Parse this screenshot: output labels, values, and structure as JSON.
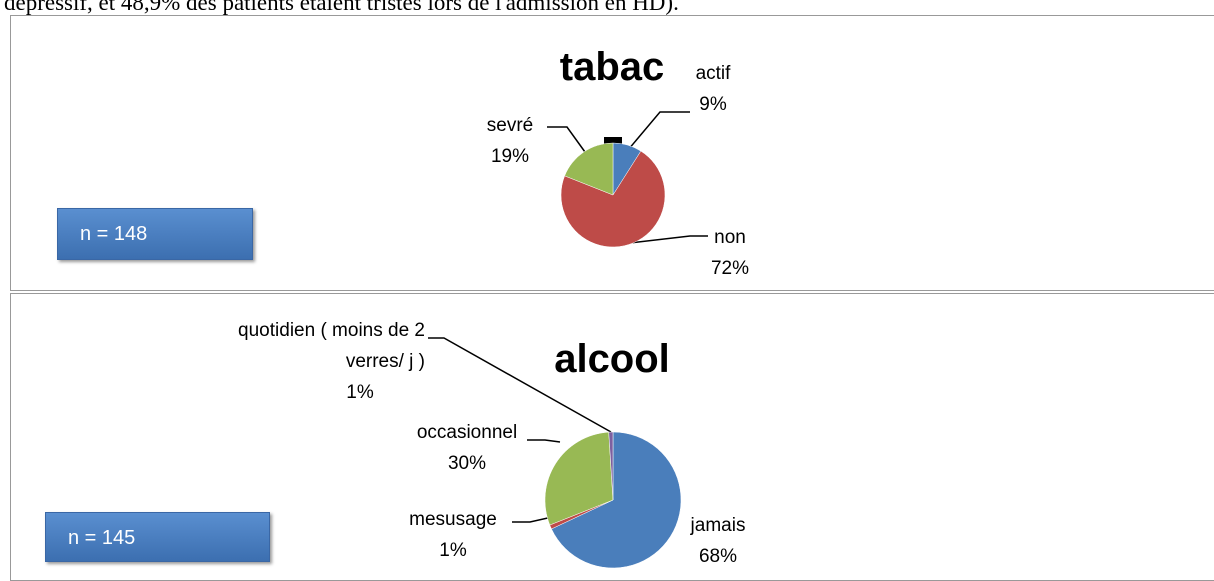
{
  "text": "dépressif, et 48,9% des patients étaient tristes lors de l'admission en HD).",
  "chart_data": [
    {
      "type": "pie",
      "title": "tabac",
      "annotation": "n = 148",
      "categories": [
        "actif",
        "non",
        "sevré"
      ],
      "values": [
        9,
        72,
        19
      ],
      "value_labels": [
        "9%",
        "72%",
        "19%"
      ],
      "colors": [
        "#4a7ebb",
        "#be4b48",
        "#98b954"
      ]
    },
    {
      "type": "pie",
      "title": "alcool",
      "annotation": "n = 145",
      "categories": [
        "jamais",
        "mesusage",
        "occasionnel",
        "quotidien ( moins de 2 verres/ j )"
      ],
      "values": [
        68,
        1,
        30,
        1
      ],
      "value_labels": [
        "68%",
        "1%",
        "30%",
        "1%"
      ],
      "colors": [
        "#4a7ebb",
        "#be4b48",
        "#98b954",
        "#7d60a0"
      ]
    }
  ]
}
